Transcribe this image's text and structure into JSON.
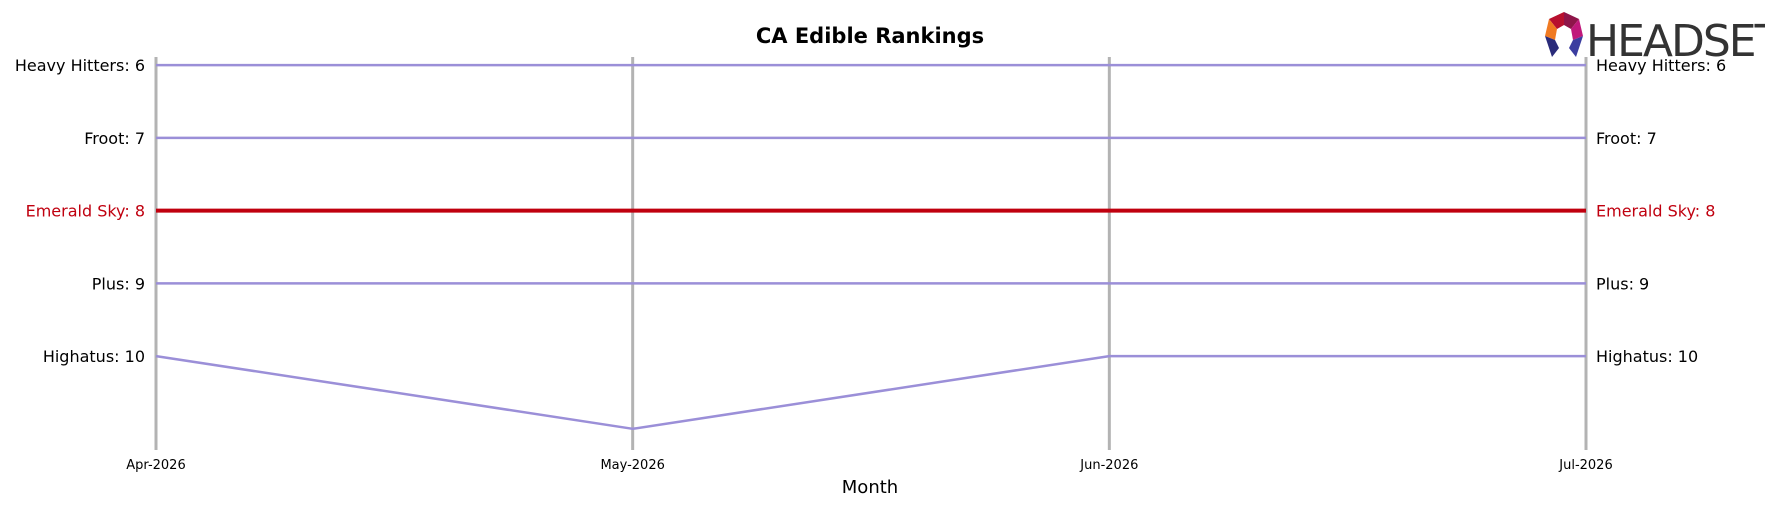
{
  "chart_data": {
    "type": "line",
    "title": "CA Edible Rankings",
    "xlabel": "Month",
    "ylabel": "",
    "x": [
      "Apr-2026",
      "May-2026",
      "Jun-2026",
      "Jul-2026"
    ],
    "y_inverted": true,
    "ylim": [
      5.75,
      11.25
    ],
    "grid": "vertical",
    "series": [
      {
        "name": "Heavy Hitters",
        "values": [
          6,
          6,
          6,
          6
        ],
        "start_label": "Heavy Hitters: 6",
        "end_label": "Heavy Hitters: 6",
        "highlight": false
      },
      {
        "name": "Froot",
        "values": [
          7,
          7,
          7,
          7
        ],
        "start_label": "Froot: 7",
        "end_label": "Froot: 7",
        "highlight": false
      },
      {
        "name": "Emerald Sky",
        "values": [
          8,
          8,
          8,
          8
        ],
        "start_label": "Emerald Sky: 8",
        "end_label": "Emerald Sky: 8",
        "highlight": true
      },
      {
        "name": "Plus",
        "values": [
          9,
          9,
          9,
          9
        ],
        "start_label": "Plus: 9",
        "end_label": "Plus: 9",
        "highlight": false
      },
      {
        "name": "Highatus",
        "values": [
          10,
          11,
          10,
          10
        ],
        "start_label": "Highatus: 10",
        "end_label": "Highatus: 10",
        "highlight": false
      }
    ],
    "colors": {
      "line": "#9b8fd8",
      "highlight": "#c0000f",
      "label": "#000000",
      "highlight_label": "#c0000f",
      "gridline": "#b3b3b3"
    }
  },
  "logo": {
    "text": "HEADSET"
  }
}
